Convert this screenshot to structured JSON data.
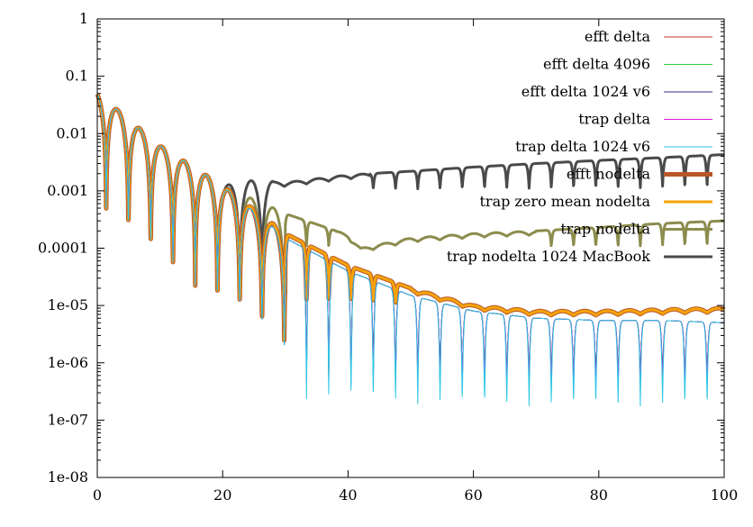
{
  "chart_data": {
    "type": "line",
    "title": "",
    "xlabel": "",
    "ylabel": "",
    "xlim": [
      0,
      100
    ],
    "ylim": [
      1e-08,
      1
    ],
    "yscale": "log",
    "grid": false,
    "legend_position": "top-right",
    "x_ticks": [
      0,
      20,
      40,
      60,
      80,
      100
    ],
    "x_tick_labels": [
      "0",
      "20",
      "40",
      "60",
      "80",
      "100"
    ],
    "y_ticks": [
      1,
      0.1,
      0.01,
      0.001,
      0.0001,
      1e-05,
      1e-06,
      1e-07,
      1e-08
    ],
    "y_tick_labels": [
      "1",
      "0.1",
      "0.01",
      "0.001",
      "0.0001",
      "1e-05",
      "1e-06",
      "1e-07",
      "1e-08"
    ],
    "series": [
      {
        "name": "efft delta",
        "color": "#c0392b",
        "pattern": "oscillating",
        "envelope": [
          [
            0,
            0.05
          ],
          [
            10,
            0.006
          ],
          [
            20,
            0.0012
          ],
          [
            30,
            0.00015
          ],
          [
            40,
            4e-05
          ],
          [
            50,
            1.5e-05
          ],
          [
            60,
            8e-06
          ],
          [
            70,
            6e-06
          ],
          [
            80,
            5.5e-06
          ],
          [
            90,
            5.5e-06
          ],
          [
            100,
            5e-06
          ]
        ],
        "dip_floor": 3e-07
      },
      {
        "name": "efft delta 4096",
        "color": "#2ecc40",
        "pattern": "oscillating",
        "envelope": [
          [
            0,
            0.05
          ],
          [
            10,
            0.006
          ],
          [
            20,
            0.0012
          ],
          [
            30,
            0.00015
          ],
          [
            40,
            4e-05
          ],
          [
            50,
            1.5e-05
          ],
          [
            60,
            8e-06
          ],
          [
            70,
            6e-06
          ],
          [
            80,
            5.5e-06
          ],
          [
            90,
            5.5e-06
          ],
          [
            100,
            5e-06
          ]
        ],
        "dip_floor": 3e-07
      },
      {
        "name": "efft delta 1024 v6",
        "color": "#3f2a8c",
        "pattern": "oscillating",
        "envelope": [
          [
            0,
            0.05
          ],
          [
            10,
            0.006
          ],
          [
            20,
            0.0012
          ],
          [
            30,
            0.00015
          ],
          [
            40,
            4e-05
          ],
          [
            50,
            1.5e-05
          ],
          [
            60,
            8e-06
          ],
          [
            70,
            6e-06
          ],
          [
            80,
            5.5e-06
          ],
          [
            90,
            5.5e-06
          ],
          [
            100,
            5e-06
          ]
        ],
        "dip_floor": 3e-07
      },
      {
        "name": "trap delta",
        "color": "#e01bd6",
        "pattern": "oscillating",
        "envelope": [
          [
            0,
            0.05
          ],
          [
            10,
            0.006
          ],
          [
            20,
            0.0012
          ],
          [
            30,
            0.00015
          ],
          [
            40,
            4e-05
          ],
          [
            50,
            1.5e-05
          ],
          [
            60,
            8e-06
          ],
          [
            70,
            6e-06
          ],
          [
            80,
            5.5e-06
          ],
          [
            90,
            5.5e-06
          ],
          [
            100,
            5e-06
          ]
        ],
        "dip_floor": 2.5e-07
      },
      {
        "name": "trap delta 1024 v6",
        "color": "#29c6e6",
        "pattern": "oscillating",
        "envelope": [
          [
            0,
            0.05
          ],
          [
            10,
            0.006
          ],
          [
            20,
            0.0012
          ],
          [
            30,
            0.00015
          ],
          [
            40,
            4e-05
          ],
          [
            50,
            1.5e-05
          ],
          [
            60,
            8e-06
          ],
          [
            70,
            6e-06
          ],
          [
            80,
            5.5e-06
          ],
          [
            90,
            5.5e-06
          ],
          [
            100,
            5e-06
          ]
        ],
        "dip_floor": 1.2e-07
      },
      {
        "name": "efft nodelta",
        "color": "#b9572a",
        "pattern": "oscillating",
        "envelope": [
          [
            0,
            0.05
          ],
          [
            10,
            0.006
          ],
          [
            20,
            0.0012
          ],
          [
            30,
            0.00018
          ],
          [
            40,
            5e-05
          ],
          [
            50,
            2e-05
          ],
          [
            60,
            1e-05
          ],
          [
            70,
            8e-06
          ],
          [
            80,
            8e-06
          ],
          [
            90,
            8.5e-06
          ],
          [
            100,
            9e-06
          ]
        ],
        "dip_floor": 1e-05
      },
      {
        "name": "trap zero mean nodelta",
        "color": "#f5a30a",
        "pattern": "oscillating",
        "envelope": [
          [
            0,
            0.05
          ],
          [
            10,
            0.006
          ],
          [
            20,
            0.0012
          ],
          [
            30,
            0.00018
          ],
          [
            40,
            5e-05
          ],
          [
            50,
            2e-05
          ],
          [
            60,
            1e-05
          ],
          [
            70,
            8e-06
          ],
          [
            80,
            8e-06
          ],
          [
            90,
            8.5e-06
          ],
          [
            100,
            9e-06
          ]
        ],
        "dip_floor": 1e-05
      },
      {
        "name": "trap nodelta",
        "color": "#8c8c4e",
        "pattern": "oscillating",
        "envelope": [
          [
            0,
            0.05
          ],
          [
            10,
            0.006
          ],
          [
            20,
            0.0012
          ],
          [
            30,
            0.0004
          ],
          [
            40,
            0.00017
          ],
          [
            42,
            0.0001
          ],
          [
            50,
            0.00015
          ],
          [
            60,
            0.00018
          ],
          [
            70,
            0.0002
          ],
          [
            80,
            0.00023
          ],
          [
            90,
            0.00027
          ],
          [
            100,
            0.0003
          ]
        ],
        "dip_floor": 0.0001
      },
      {
        "name": "trap nodelta 1024 MacBook",
        "color": "#4a4a4a",
        "pattern": "oscillating",
        "envelope": [
          [
            0,
            0.05
          ],
          [
            10,
            0.006
          ],
          [
            20,
            0.0012
          ],
          [
            25,
            0.0015
          ],
          [
            30,
            0.0014
          ],
          [
            40,
            0.0019
          ],
          [
            50,
            0.0022
          ],
          [
            60,
            0.0026
          ],
          [
            70,
            0.003
          ],
          [
            80,
            0.0034
          ],
          [
            90,
            0.0038
          ],
          [
            100,
            0.0043
          ]
        ],
        "dip_floor": 0.001
      }
    ]
  }
}
